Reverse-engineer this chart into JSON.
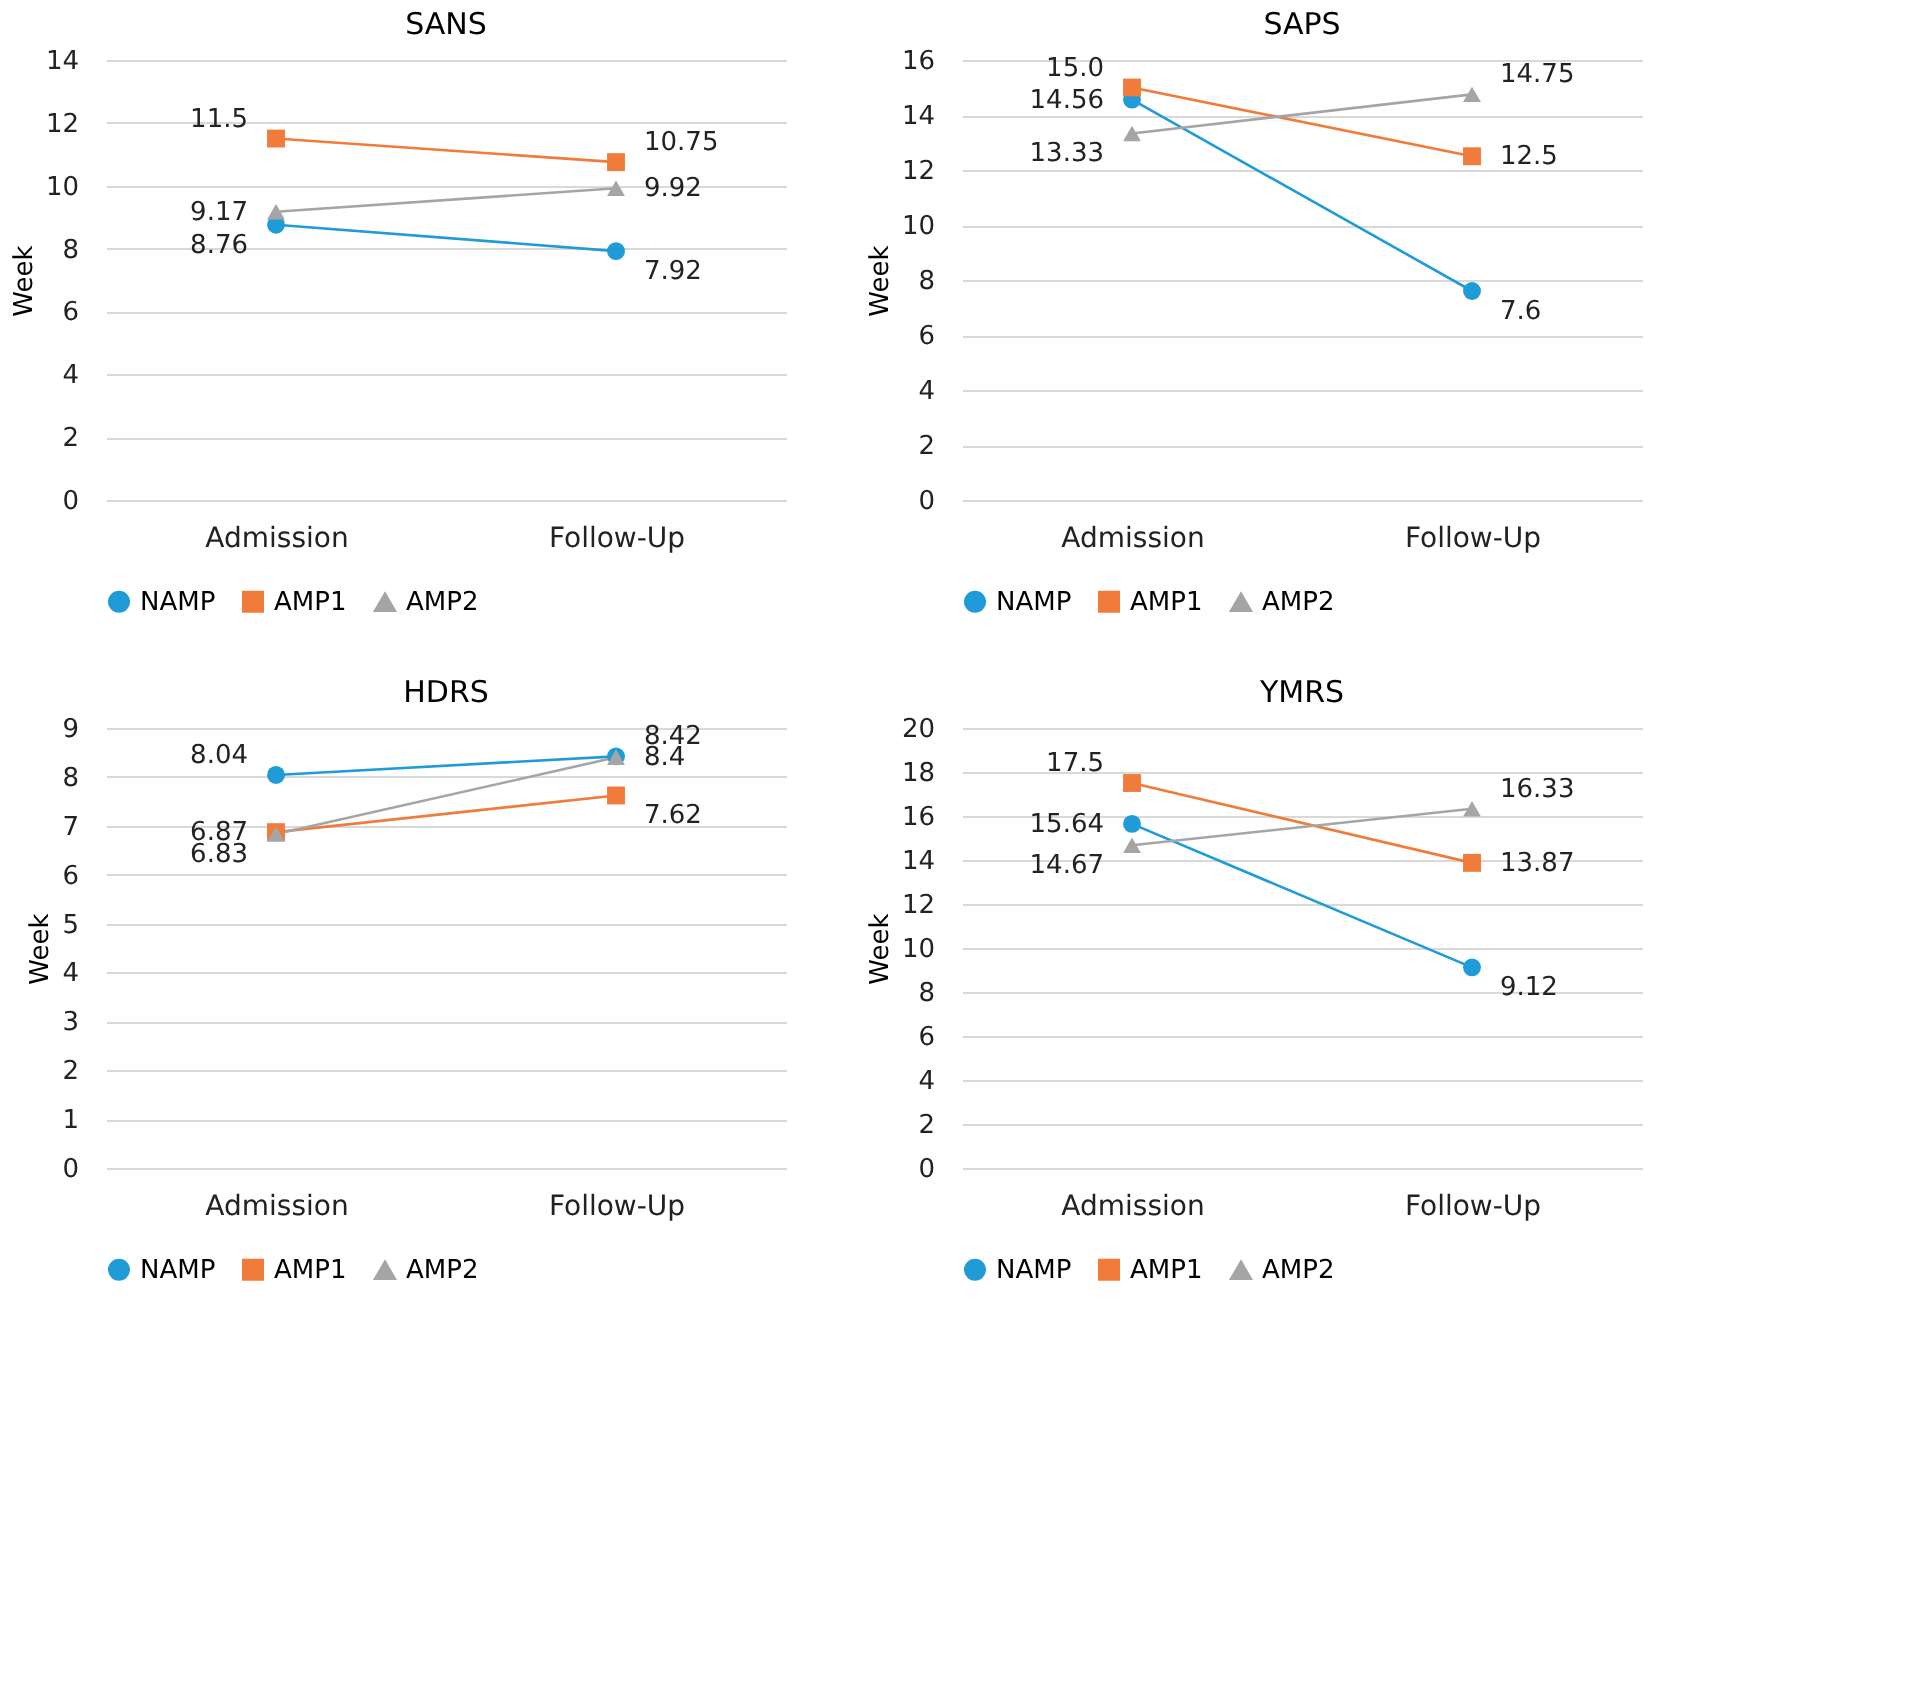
{
  "chart_data": [
    {
      "type": "line",
      "title": "SANS",
      "ylabel": "Week",
      "categories": [
        "Admission",
        "Follow-Up"
      ],
      "ylim": [
        0,
        14
      ],
      "yticks": [
        0,
        2,
        4,
        6,
        8,
        10,
        12,
        14
      ],
      "grid": "y",
      "legend": "bottom",
      "series": [
        {
          "name": "NAMP",
          "color": "#1f9bd7",
          "marker": "circle",
          "values": [
            8.76,
            7.92
          ],
          "value_labels": [
            "8.76",
            "7.92"
          ]
        },
        {
          "name": "AMP1",
          "color": "#f07b3a",
          "marker": "square",
          "values": [
            11.5,
            10.75
          ],
          "value_labels": [
            "11.5",
            "10.75"
          ]
        },
        {
          "name": "AMP2",
          "color": "#a5a5a5",
          "marker": "triangle",
          "values": [
            9.17,
            9.92
          ],
          "value_labels": [
            "9.17",
            "9.92"
          ]
        }
      ]
    },
    {
      "type": "line",
      "title": "SAPS",
      "ylabel": "Week",
      "categories": [
        "Admission",
        "Follow-Up"
      ],
      "ylim": [
        0,
        16
      ],
      "yticks": [
        0,
        2,
        4,
        6,
        8,
        10,
        12,
        14,
        16
      ],
      "grid": "y",
      "legend": "bottom",
      "series": [
        {
          "name": "NAMP",
          "color": "#1f9bd7",
          "marker": "circle",
          "values": [
            14.56,
            7.6
          ],
          "value_labels": [
            "14.56",
            "7.6"
          ]
        },
        {
          "name": "AMP1",
          "color": "#f07b3a",
          "marker": "square",
          "values": [
            15.0,
            12.5
          ],
          "value_labels": [
            "15.0",
            "12.5"
          ]
        },
        {
          "name": "AMP2",
          "color": "#a5a5a5",
          "marker": "triangle",
          "values": [
            13.33,
            14.75
          ],
          "value_labels": [
            "13.33",
            "14.75"
          ]
        }
      ]
    },
    {
      "type": "line",
      "title": "HDRS",
      "ylabel": "Week",
      "categories": [
        "Admission",
        "Follow-Up"
      ],
      "ylim": [
        0,
        9
      ],
      "yticks": [
        0,
        1,
        2,
        3,
        4,
        5,
        6,
        7,
        8,
        9
      ],
      "grid": "y",
      "legend": "bottom",
      "series": [
        {
          "name": "NAMP",
          "color": "#1f9bd7",
          "marker": "circle",
          "values": [
            8.04,
            8.42
          ],
          "value_labels": [
            "8.04",
            "8.42"
          ]
        },
        {
          "name": "AMP1",
          "color": "#f07b3a",
          "marker": "square",
          "values": [
            6.87,
            7.62
          ],
          "value_labels": [
            "6.87",
            "7.62"
          ]
        },
        {
          "name": "AMP2",
          "color": "#a5a5a5",
          "marker": "triangle",
          "values": [
            6.83,
            8.4
          ],
          "value_labels": [
            "6.83",
            "8.4"
          ]
        }
      ]
    },
    {
      "type": "line",
      "title": "YMRS",
      "ylabel": "Week",
      "categories": [
        "Admission",
        "Follow-Up"
      ],
      "ylim": [
        0,
        20
      ],
      "yticks": [
        0,
        2,
        4,
        6,
        8,
        10,
        12,
        14,
        16,
        18,
        20
      ],
      "grid": "y",
      "legend": "bottom",
      "series": [
        {
          "name": "NAMP",
          "color": "#1f9bd7",
          "marker": "circle",
          "values": [
            15.64,
            9.12
          ],
          "value_labels": [
            "15.64",
            "9.12"
          ]
        },
        {
          "name": "AMP1",
          "color": "#f07b3a",
          "marker": "square",
          "values": [
            17.5,
            13.87
          ],
          "value_labels": [
            "17.5",
            "13.87"
          ]
        },
        {
          "name": "AMP2",
          "color": "#a5a5a5",
          "marker": "triangle",
          "values": [
            14.67,
            16.33
          ],
          "value_labels": [
            "14.67",
            "16.33"
          ]
        }
      ]
    }
  ]
}
